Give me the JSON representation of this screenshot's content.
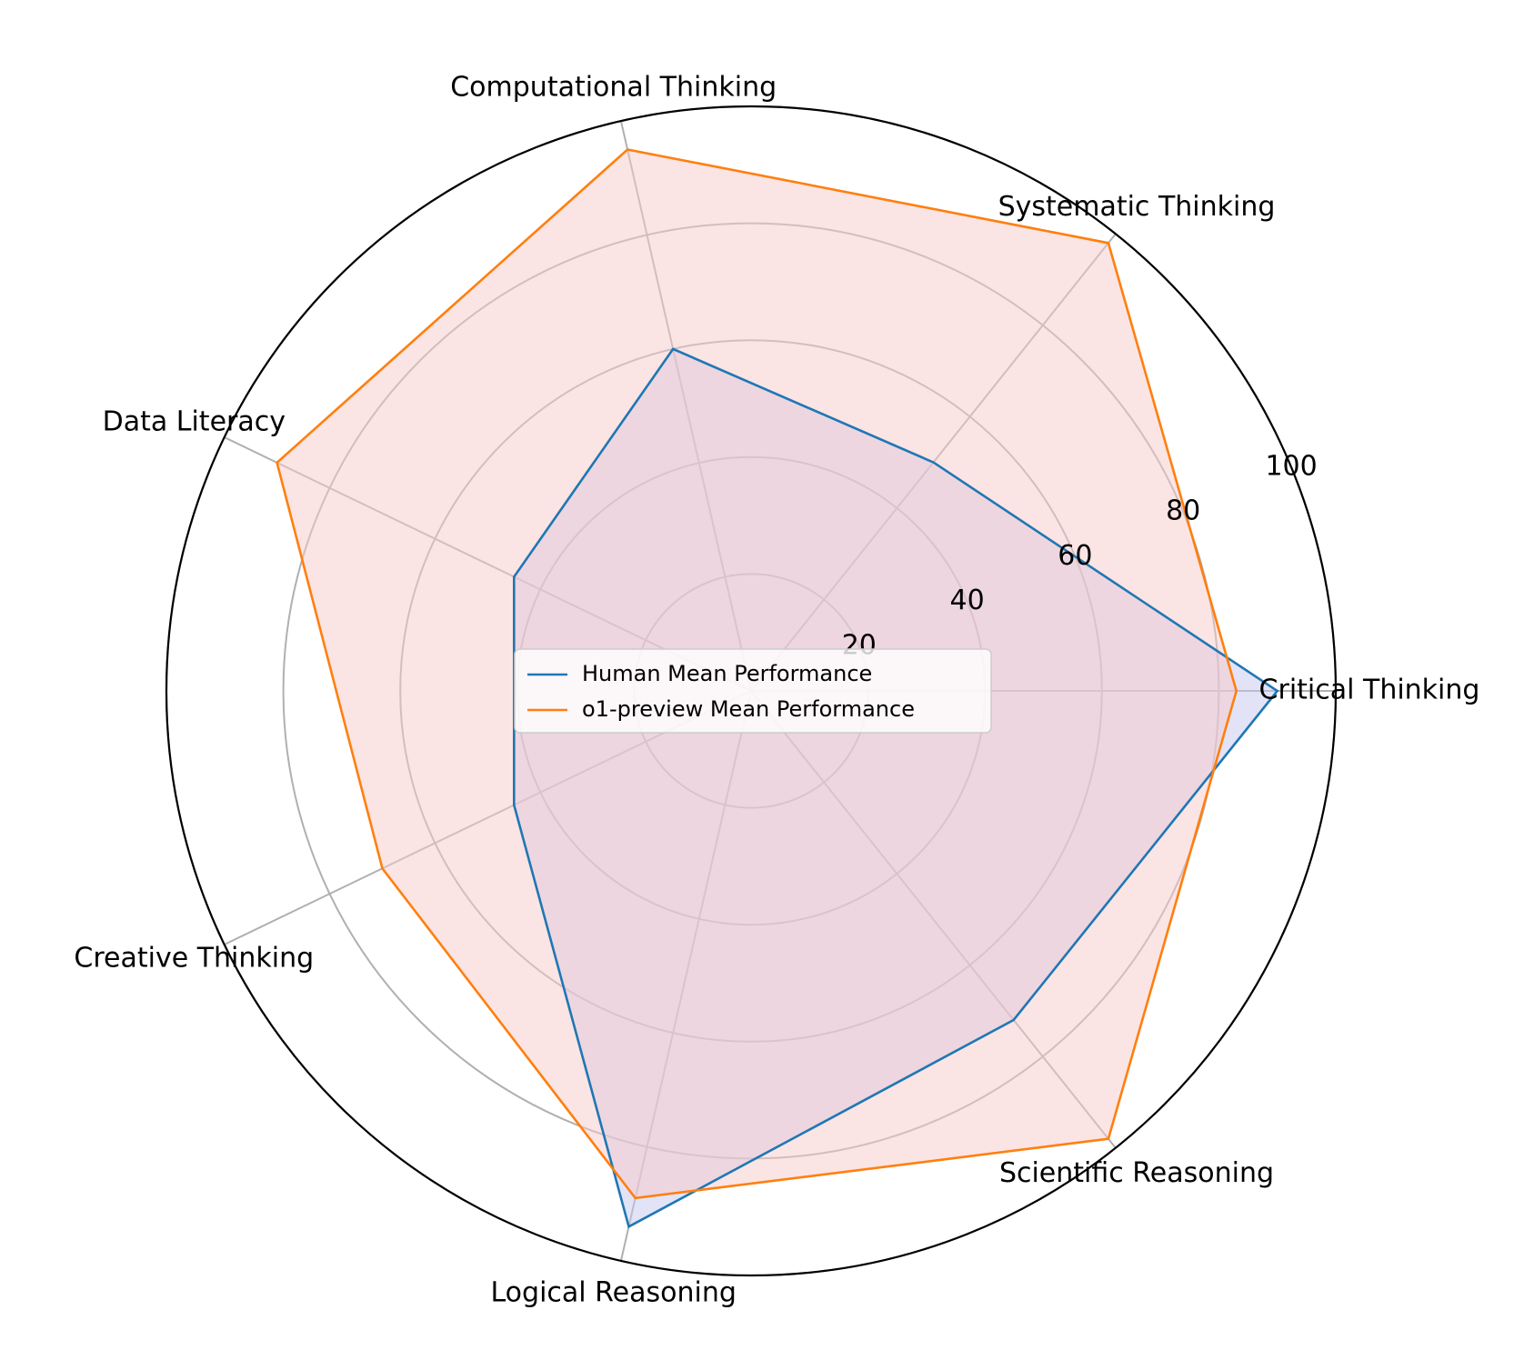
{
  "chart_data": {
    "type": "radar",
    "title": "",
    "categories": [
      "Critical Thinking",
      "Systematic Thinking",
      "Computational Thinking",
      "Data Literacy",
      "Creative Thinking",
      "Logical Reasoning",
      "Scientific Reasoning"
    ],
    "rlim": [
      0,
      100
    ],
    "rticks": [
      20,
      40,
      60,
      80,
      100
    ],
    "rtick_labels": [
      "20",
      "40",
      "60",
      "80",
      "100"
    ],
    "grid": true,
    "legend_position": "center",
    "series": [
      {
        "name": "Human Mean Performance",
        "values": [
          90,
          50,
          60,
          45,
          45,
          94,
          72
        ],
        "line_color": "#1f77b4",
        "fill_color": "#c8c8f0"
      },
      {
        "name": "o1-preview Mean Performance",
        "values": [
          83,
          98,
          95,
          90,
          70,
          89,
          98
        ],
        "line_color": "#ff7f0e",
        "fill_color": "#f8caca"
      }
    ]
  }
}
